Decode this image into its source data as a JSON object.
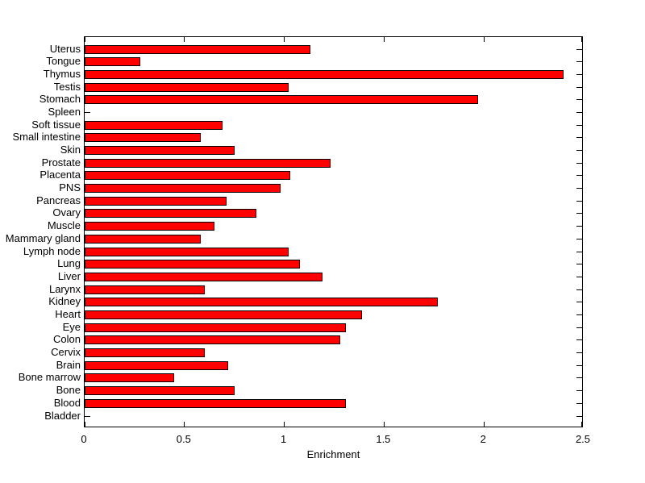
{
  "chart_data": {
    "type": "bar",
    "orientation": "horizontal",
    "title": "",
    "xlabel": "Enrichment",
    "ylabel": "",
    "xlim": [
      0,
      2.5
    ],
    "xticks": [
      0,
      0.5,
      1,
      1.5,
      2,
      2.5
    ],
    "xtick_labels": [
      "0",
      "0.5",
      "1",
      "1.5",
      "2",
      "2.5"
    ],
    "grid": false,
    "legend": null,
    "bar_color": "#ff0000",
    "bar_edge_color": "#000000",
    "axis_color": "#000000",
    "background_color": "#ffffff",
    "categories": [
      "Uterus",
      "Tongue",
      "Thymus",
      "Testis",
      "Stomach",
      "Spleen",
      "Soft tissue",
      "Small intestine",
      "Skin",
      "Prostate",
      "Placenta",
      "PNS",
      "Pancreas",
      "Ovary",
      "Muscle",
      "Mammary gland",
      "Lymph node",
      "Lung",
      "Liver",
      "Larynx",
      "Kidney",
      "Heart",
      "Eye",
      "Colon",
      "Cervix",
      "Brain",
      "Bone marrow",
      "Bone",
      "Blood",
      "Bladder"
    ],
    "values": [
      1.13,
      0.28,
      2.4,
      1.02,
      1.97,
      0,
      0.69,
      0.58,
      0.75,
      1.23,
      1.03,
      0.98,
      0.71,
      0.86,
      0.65,
      0.58,
      1.02,
      1.08,
      1.19,
      0.6,
      1.77,
      1.39,
      1.31,
      1.28,
      0.6,
      0.72,
      0.45,
      0.75,
      1.31,
      0
    ]
  }
}
